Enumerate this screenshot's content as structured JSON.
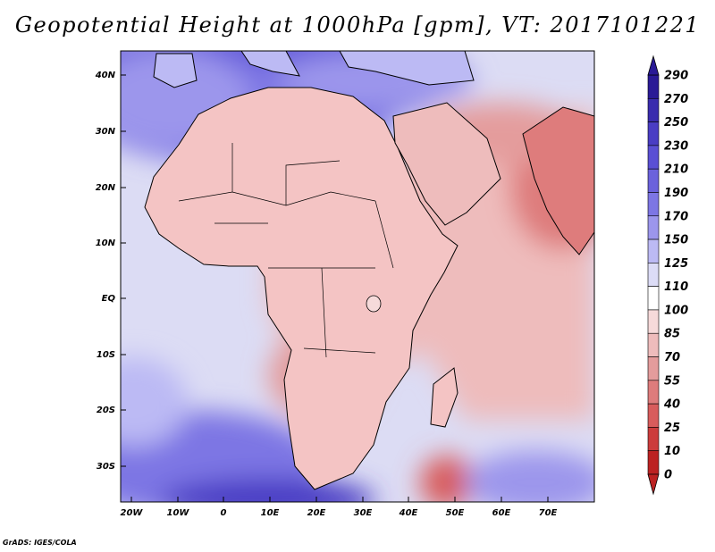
{
  "title": "Geopotential Height at 1000hPa [gpm], VT: 2017101221",
  "credit": "GrADS: IGES/COLA",
  "map": {
    "lon_labels": [
      "20W",
      "10W",
      "0",
      "10E",
      "20E",
      "30E",
      "40E",
      "50E",
      "60E",
      "70E"
    ],
    "lat_labels": [
      "40N",
      "30N",
      "20N",
      "10N",
      "EQ",
      "10S",
      "20S",
      "30S"
    ],
    "colors": {
      "ocean_base": "#dcdcf4",
      "land_base": "#f4c4c4",
      "coast": "#000000"
    }
  },
  "colorbar": {
    "units": "gpm",
    "labels": [
      "290",
      "270",
      "250",
      "230",
      "210",
      "190",
      "170",
      "150",
      "125",
      "110",
      "100",
      "85",
      "70",
      "55",
      "40",
      "25",
      "10",
      "0"
    ],
    "colors": [
      "#2a1a96",
      "#3a2cae",
      "#4a3dc4",
      "#5a4fd4",
      "#6b62dc",
      "#7d76e4",
      "#9c96ec",
      "#bcbaf4",
      "#dcdcf6",
      "#ffffff",
      "#f6dada",
      "#eebcbc",
      "#e49c9c",
      "#de7c7c",
      "#d85c5c",
      "#cc3c3c",
      "#bc2222"
    ]
  }
}
